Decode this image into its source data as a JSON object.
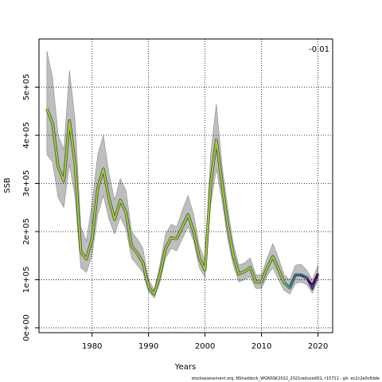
{
  "chart_data": {
    "type": "line",
    "title": "",
    "xlabel": "Years",
    "ylabel": "SSB",
    "corner_annotation": "-0.01",
    "footer": "stockassessment.org, NShaddock_WGNSSK2022_2021reducedQ1, r15711 , git: ec2c2a0c6dde",
    "xlim": [
      1970.6,
      2022.6
    ],
    "ylim": [
      -10000,
      600000
    ],
    "x_ticks": [
      1980,
      1990,
      2000,
      2010,
      2020
    ],
    "y_ticks": [
      0,
      100000,
      200000,
      300000,
      400000,
      500000
    ],
    "y_tick_labels": [
      "0e+00",
      "1e+05",
      "2e+05",
      "3e+05",
      "4e+05",
      "5e+05"
    ],
    "grid": true,
    "band_color": "#bebebe",
    "years": [
      1972,
      1973,
      1974,
      1975,
      1976,
      1977,
      1978,
      1979,
      1980,
      1981,
      1982,
      1983,
      1984,
      1985,
      1986,
      1987,
      1988,
      1989,
      1990,
      1991,
      1992,
      1993,
      1994,
      1995,
      1996,
      1997,
      1998,
      1999,
      2000,
      2001,
      2002,
      2003,
      2004,
      2005,
      2006,
      2007,
      2008,
      2009,
      2010,
      2011,
      2012,
      2013,
      2014,
      2015,
      2016,
      2017,
      2018,
      2019,
      2020
    ],
    "upper": [
      575000,
      520000,
      400000,
      370000,
      535000,
      430000,
      210000,
      180000,
      260000,
      360000,
      400000,
      320000,
      265000,
      310000,
      285000,
      200000,
      185000,
      165000,
      100000,
      80000,
      130000,
      195000,
      215000,
      210000,
      245000,
      275000,
      235000,
      170000,
      140000,
      360000,
      465000,
      340000,
      250000,
      175000,
      130000,
      135000,
      145000,
      110000,
      110000,
      145000,
      175000,
      145000,
      110000,
      100000,
      130000,
      132000,
      120000,
      100000,
      130000
    ],
    "estimate": [
      455000,
      425000,
      335000,
      305000,
      430000,
      340000,
      158000,
      143000,
      185000,
      290000,
      330000,
      268000,
      225000,
      265000,
      240000,
      170000,
      155000,
      135000,
      85000,
      70000,
      110000,
      165000,
      187000,
      185000,
      210000,
      235000,
      200000,
      145000,
      120000,
      300000,
      390000,
      300000,
      215000,
      150000,
      112000,
      117000,
      125000,
      95000,
      95000,
      125000,
      148000,
      122000,
      94000,
      83000,
      110000,
      110000,
      105000,
      85000,
      112000
    ],
    "lower": [
      360000,
      345000,
      270000,
      250000,
      340000,
      270000,
      125000,
      115000,
      150000,
      235000,
      275000,
      225000,
      195000,
      230000,
      205000,
      145000,
      130000,
      115000,
      75000,
      62000,
      95000,
      145000,
      165000,
      160000,
      185000,
      210000,
      180000,
      125000,
      105000,
      255000,
      330000,
      265000,
      185000,
      130000,
      95000,
      100000,
      105000,
      82000,
      82000,
      108000,
      125000,
      100000,
      78000,
      70000,
      92000,
      95000,
      90000,
      72000,
      100000
    ],
    "retro_peels": [
      {
        "years": [
          2014,
          2015,
          2016,
          2017,
          2018,
          2019
        ],
        "values": [
          96000,
          84000,
          109000,
          111000,
          104000,
          86000
        ],
        "color": "#1f9e89"
      },
      {
        "years": [
          2015,
          2016,
          2017,
          2018,
          2019
        ],
        "values": [
          85000,
          110000,
          110000,
          103000,
          88000
        ],
        "color": "#2c728e"
      },
      {
        "years": [
          2016,
          2017,
          2018,
          2019
        ],
        "values": [
          108000,
          110000,
          102000,
          84000
        ],
        "color": "#3b528b"
      },
      {
        "years": [
          2017,
          2018,
          2019,
          2020
        ],
        "values": [
          108000,
          103000,
          80000,
          110000
        ],
        "color": "#472d7b"
      },
      {
        "years": [
          2018,
          2019,
          2020
        ],
        "values": [
          101000,
          90000,
          113000
        ],
        "color": "#440154"
      }
    ],
    "estimate_color": "#9acd32",
    "estimate_edge_color": "#404040"
  }
}
